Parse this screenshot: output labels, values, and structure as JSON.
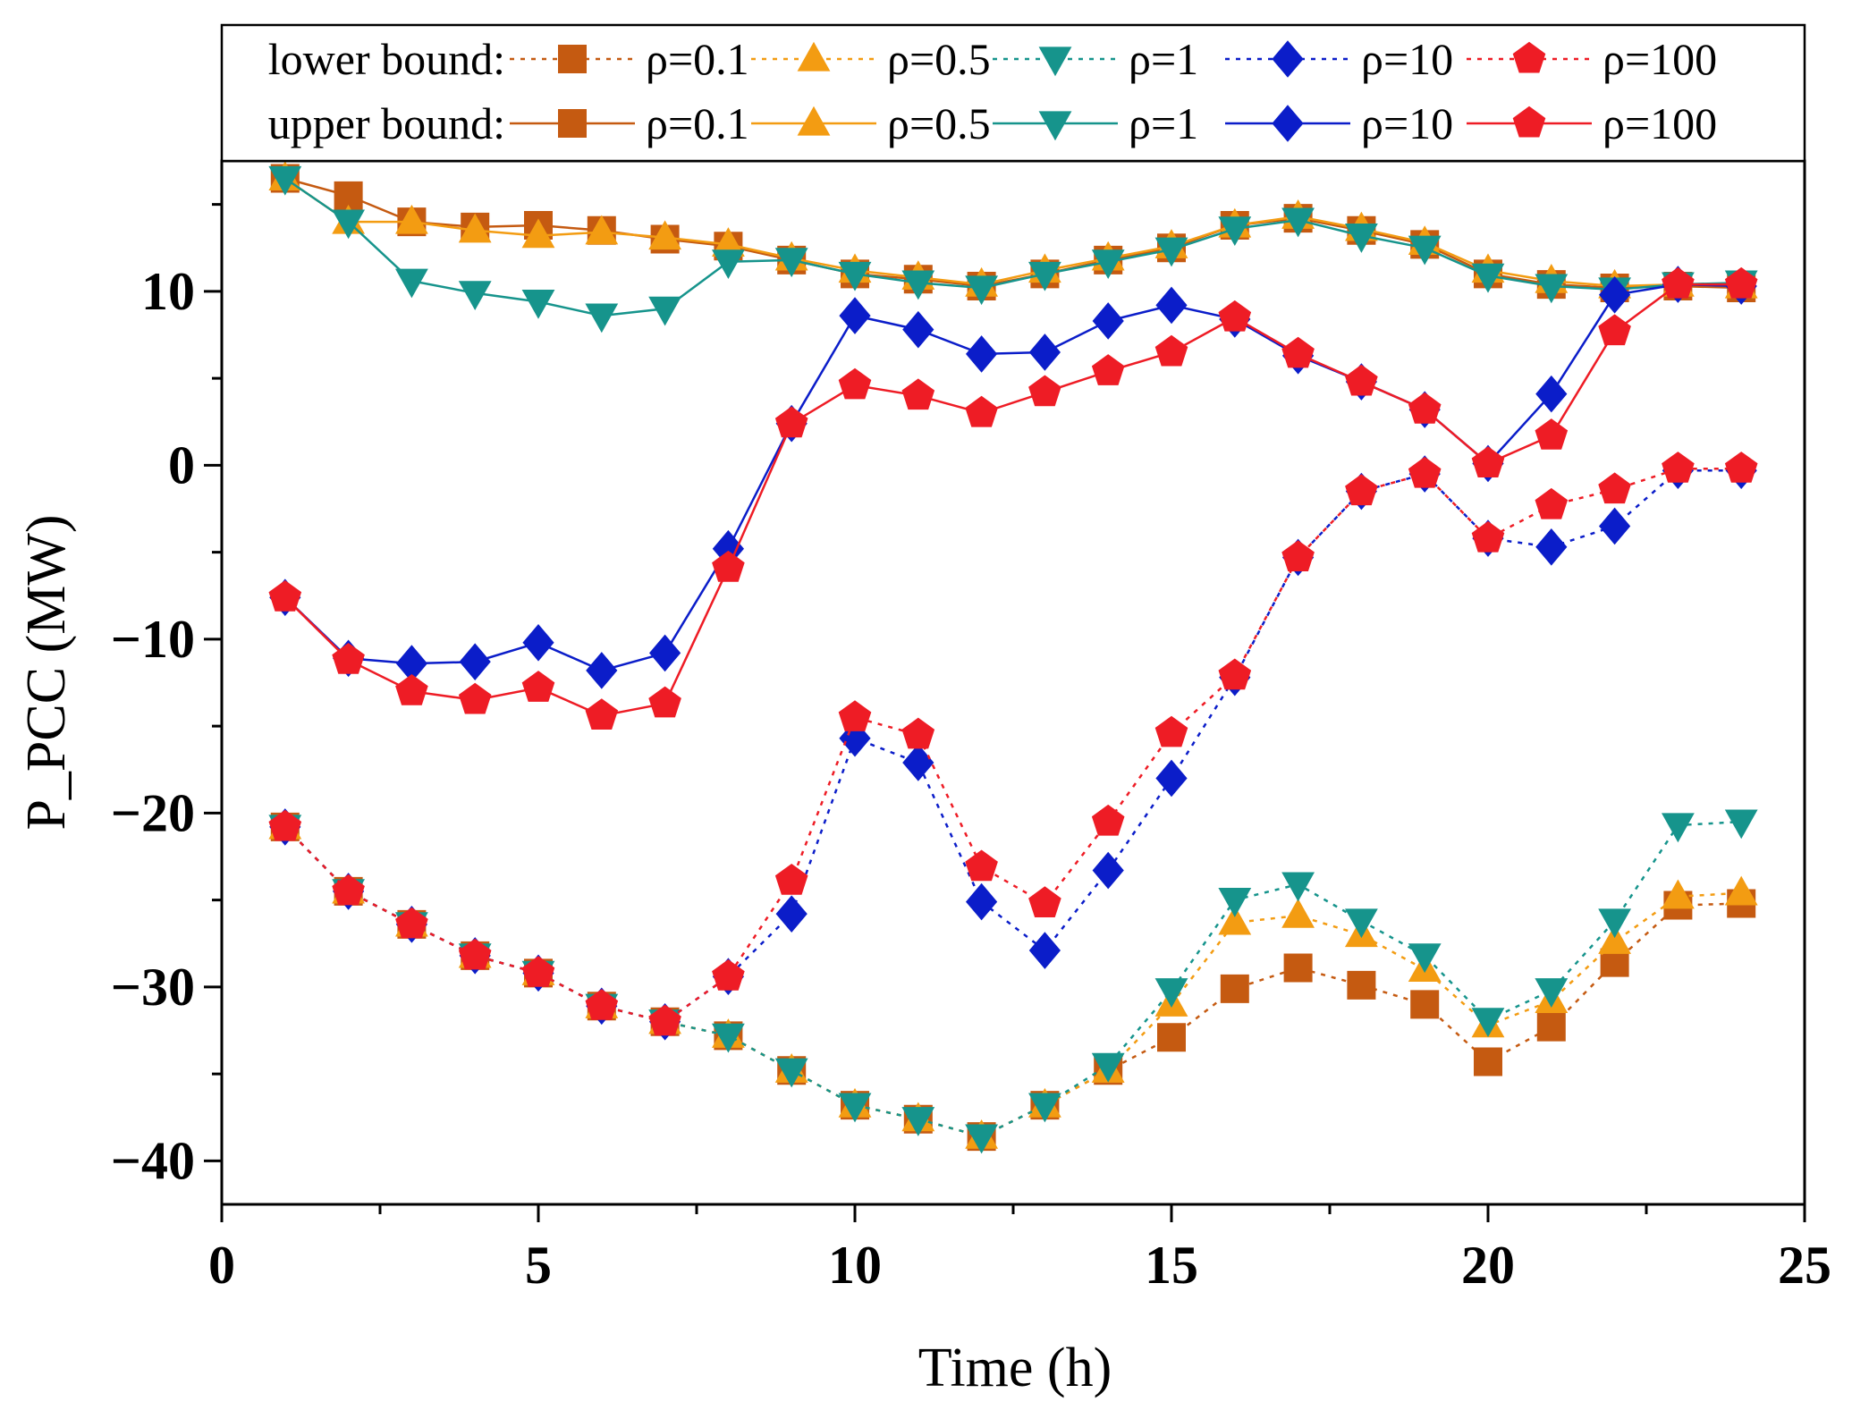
{
  "chart_data": {
    "type": "line",
    "title": "",
    "xlabel": "Time (h)",
    "ylabel": "P_PCC (MW)",
    "xlim": [
      0,
      25
    ],
    "ylim": [
      -42.5,
      17.5
    ],
    "xticks": [
      0,
      5,
      10,
      15,
      20,
      25
    ],
    "xtick_labels": [
      "0",
      "5",
      "10",
      "15",
      "20",
      "25"
    ],
    "yticks": [
      -40,
      -30,
      -20,
      -10,
      0,
      10
    ],
    "ytick_labels": [
      "−40",
      "−30",
      "−20",
      "−10",
      "0",
      "10"
    ],
    "grid": false,
    "legend_position": "top",
    "legend_rows": [
      {
        "label": "lower bound:",
        "bound": "lower"
      },
      {
        "label": "upper bound:",
        "bound": "upper"
      }
    ],
    "x": [
      1,
      2,
      3,
      4,
      5,
      6,
      7,
      8,
      9,
      10,
      11,
      12,
      13,
      14,
      15,
      16,
      17,
      18,
      19,
      20,
      21,
      22,
      23,
      24
    ],
    "series": [
      {
        "name": "ρ=0.1",
        "bound": "lower",
        "marker": "square",
        "color": "#C55A11",
        "line": "dotted",
        "values": [
          -20.8,
          -24.5,
          -26.4,
          -28.2,
          -29.2,
          -31.1,
          -32.0,
          -32.8,
          -34.8,
          -36.8,
          -37.6,
          -38.6,
          -36.8,
          -34.8,
          -32.9,
          -30.1,
          -28.9,
          -29.9,
          -31.0,
          -34.3,
          -32.3,
          -28.6,
          -25.3,
          -25.2
        ]
      },
      {
        "name": "ρ=0.5",
        "bound": "lower",
        "marker": "triangle-up",
        "color": "#F39C12",
        "line": "dotted",
        "values": [
          -20.8,
          -24.5,
          -26.4,
          -28.2,
          -29.2,
          -31.1,
          -32.0,
          -32.8,
          -34.8,
          -36.8,
          -37.6,
          -38.6,
          -36.8,
          -34.8,
          -31.0,
          -26.3,
          -25.9,
          -27.0,
          -29.0,
          -32.2,
          -30.8,
          -27.4,
          -24.8,
          -24.6
        ]
      },
      {
        "name": "ρ=1",
        "bound": "lower",
        "marker": "triangle-down",
        "color": "#16948C",
        "line": "dotted",
        "values": [
          -20.8,
          -24.5,
          -26.4,
          -28.2,
          -29.2,
          -31.1,
          -32.0,
          -32.8,
          -34.8,
          -36.8,
          -37.6,
          -38.6,
          -36.8,
          -34.5,
          -30.2,
          -25.0,
          -24.1,
          -26.2,
          -28.2,
          -31.9,
          -30.2,
          -26.2,
          -20.7,
          -20.5
        ]
      },
      {
        "name": "ρ=10",
        "bound": "lower",
        "marker": "diamond",
        "color": "#0B1DC9",
        "line": "dotted",
        "values": [
          -20.8,
          -24.5,
          -26.4,
          -28.2,
          -29.2,
          -31.1,
          -32.0,
          -29.4,
          -25.8,
          -15.7,
          -17.1,
          -25.1,
          -27.9,
          -23.3,
          -18.0,
          -12.2,
          -5.3,
          -1.5,
          -0.5,
          -4.2,
          -4.7,
          -3.5,
          -0.3,
          -0.3
        ]
      },
      {
        "name": "ρ=100",
        "bound": "lower",
        "marker": "pentagon",
        "color": "#EE1C25",
        "line": "dotted",
        "values": [
          -20.8,
          -24.5,
          -26.4,
          -28.2,
          -29.2,
          -31.1,
          -32.0,
          -29.4,
          -23.9,
          -14.5,
          -15.5,
          -23.1,
          -25.2,
          -20.5,
          -15.4,
          -12.1,
          -5.3,
          -1.5,
          -0.5,
          -4.2,
          -2.3,
          -1.4,
          -0.2,
          -0.2
        ]
      },
      {
        "name": "ρ=0.1",
        "bound": "upper",
        "marker": "square",
        "color": "#C55A11",
        "line": "solid",
        "values": [
          16.5,
          15.5,
          14.0,
          13.7,
          13.8,
          13.5,
          13.0,
          12.6,
          11.8,
          11.0,
          10.7,
          10.3,
          11.0,
          11.8,
          12.5,
          13.8,
          14.2,
          13.5,
          12.7,
          11.0,
          10.4,
          10.2,
          10.3,
          10.2
        ]
      },
      {
        "name": "ρ=0.5",
        "bound": "upper",
        "marker": "triangle-up",
        "color": "#F39C12",
        "line": "solid",
        "values": [
          16.5,
          14.0,
          14.0,
          13.5,
          13.2,
          13.4,
          13.1,
          12.7,
          11.9,
          11.2,
          10.8,
          10.4,
          11.2,
          11.9,
          12.6,
          13.8,
          14.3,
          13.6,
          12.8,
          11.2,
          10.6,
          10.3,
          10.4,
          10.3
        ]
      },
      {
        "name": "ρ=1",
        "bound": "upper",
        "marker": "triangle-down",
        "color": "#16948C",
        "line": "solid",
        "values": [
          16.5,
          14.0,
          10.6,
          9.9,
          9.4,
          8.6,
          9.0,
          11.7,
          11.8,
          11.0,
          10.5,
          10.2,
          11.0,
          11.7,
          12.4,
          13.6,
          14.1,
          13.2,
          12.5,
          10.9,
          10.3,
          10.1,
          10.4,
          10.5
        ]
      },
      {
        "name": "ρ=10",
        "bound": "upper",
        "marker": "diamond",
        "color": "#0B1DC9",
        "line": "solid",
        "values": [
          -7.6,
          -11.1,
          -11.4,
          -11.3,
          -10.2,
          -11.8,
          -10.8,
          -4.8,
          2.4,
          8.6,
          7.8,
          6.4,
          6.5,
          8.3,
          9.2,
          8.4,
          6.3,
          4.8,
          3.2,
          0.1,
          4.1,
          9.8,
          10.4,
          10.3
        ]
      },
      {
        "name": "ρ=100",
        "bound": "upper",
        "marker": "pentagon",
        "color": "#EE1C25",
        "line": "solid",
        "values": [
          -7.6,
          -11.2,
          -13.0,
          -13.5,
          -12.8,
          -14.4,
          -13.7,
          -5.9,
          2.4,
          4.6,
          4.0,
          3.0,
          4.2,
          5.4,
          6.5,
          8.5,
          6.4,
          4.8,
          3.2,
          0.1,
          1.7,
          7.7,
          10.4,
          10.4
        ]
      }
    ]
  }
}
